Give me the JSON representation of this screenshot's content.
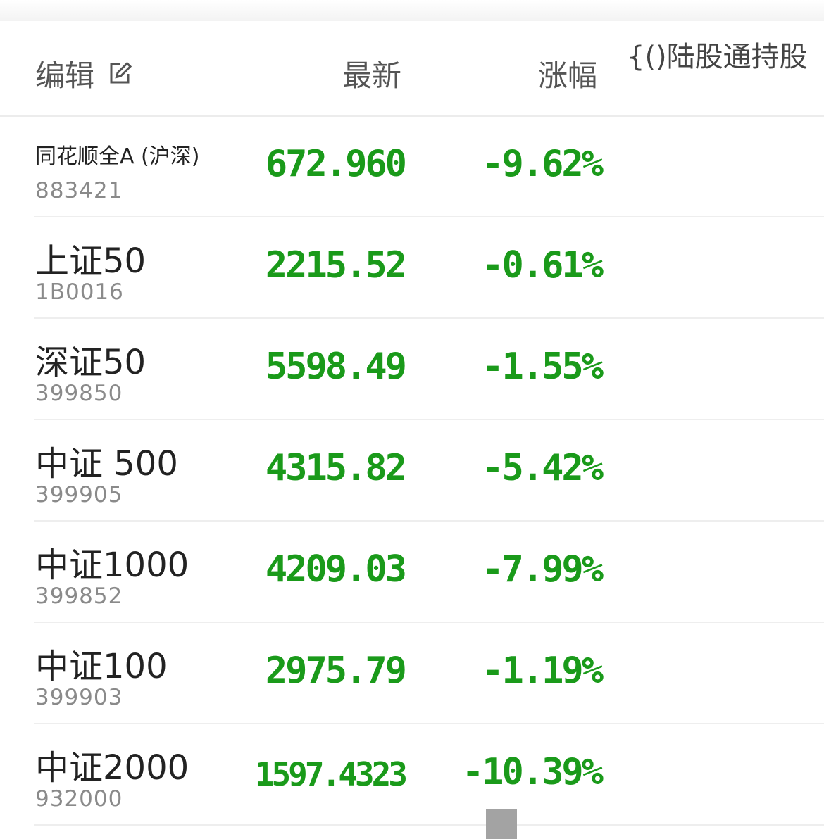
{
  "header": {
    "edit_label": "编辑",
    "latest_label": "最新",
    "change_label": "涨幅",
    "extra_label": "{()陆股通持股"
  },
  "colors": {
    "down": "#1a9a1a",
    "text": "#222222",
    "code": "#8a8a8a"
  },
  "rows": [
    {
      "name": "同花顺全A (沪深)",
      "code": "883421",
      "price": "672.960",
      "change": "-9.62%"
    },
    {
      "name": "上证50",
      "code": "1B0016",
      "price": "2215.52",
      "change": "-0.61%"
    },
    {
      "name": "深证50",
      "code": "399850",
      "price": "5598.49",
      "change": "-1.55%"
    },
    {
      "name": "中证 500",
      "code": "399905",
      "price": "4315.82",
      "change": "-5.42%"
    },
    {
      "name": "中证1000",
      "code": "399852",
      "price": "4209.03",
      "change": "-7.99%"
    },
    {
      "name": "中证100",
      "code": "399903",
      "price": "2975.79",
      "change": "-1.19%"
    },
    {
      "name": "中证2000",
      "code": "932000",
      "price": "1597.4323",
      "change": "-10.39%"
    }
  ]
}
